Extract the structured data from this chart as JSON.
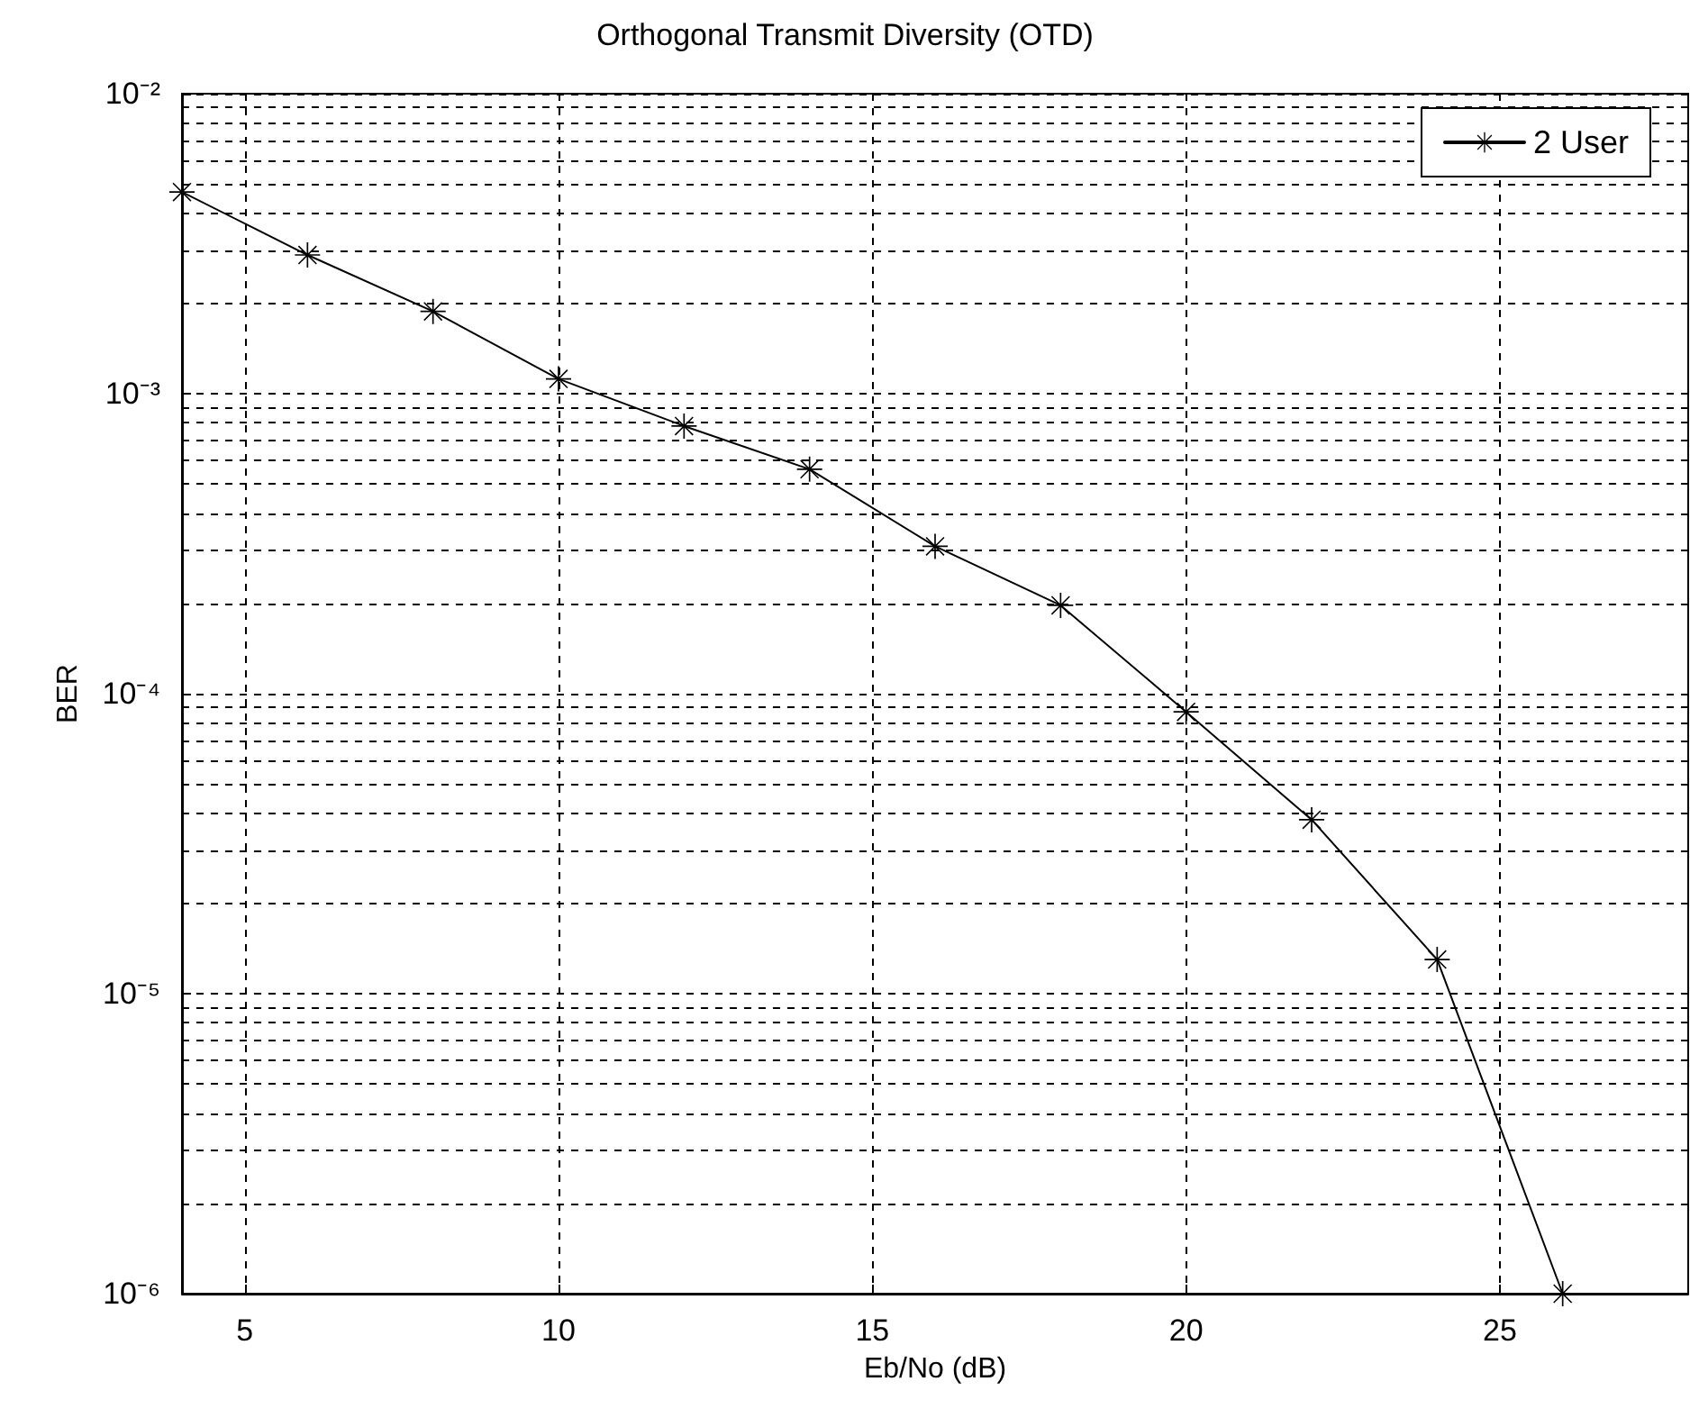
{
  "chart_data": {
    "type": "line",
    "title": "Orthogonal Transmit Diversity (OTD)",
    "xlabel": "Eb/No (dB)",
    "ylabel": "BER",
    "x": [
      4,
      6,
      8,
      10,
      12,
      14,
      16,
      18,
      20,
      22,
      24,
      26
    ],
    "series": [
      {
        "name": "2 User",
        "color": "#000000",
        "values": [
          0.0047,
          0.0029,
          0.00188,
          0.00112,
          0.00078,
          0.00056,
          0.00031,
          0.000197,
          8.7e-05,
          3.8e-05,
          1.3e-05,
          1e-06
        ]
      }
    ],
    "log": "y",
    "xlim": [
      4,
      28
    ],
    "xticks": [
      5,
      10,
      15,
      20,
      25
    ],
    "ylim": [
      1e-06,
      0.01
    ],
    "yticks": [
      {
        "value": 1e-06,
        "label": "10⁻⁶"
      },
      {
        "value": 1e-05,
        "label": "10⁻⁵"
      },
      {
        "value": 0.0001,
        "label": "10⁻⁴"
      },
      {
        "value": 0.001,
        "label": "10⁻³"
      },
      {
        "value": 0.01,
        "label": "10⁻²"
      }
    ],
    "grid": true,
    "legend": "top right",
    "marker": "star",
    "line_style": "solid"
  }
}
